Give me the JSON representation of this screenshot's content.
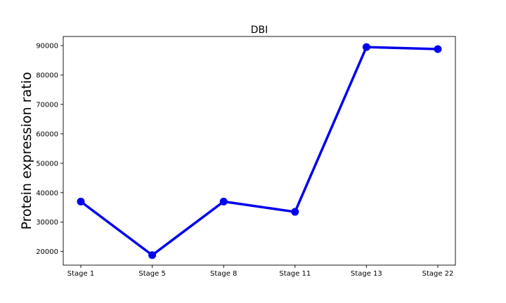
{
  "chart_data": {
    "type": "line",
    "title": "DBI",
    "xlabel": "",
    "ylabel": "Protein expression ratio",
    "categories": [
      "Stage 1",
      "Stage 5",
      "Stage 8",
      "Stage 11",
      "Stage 13",
      "Stage 22"
    ],
    "series": [
      {
        "values": [
          37000,
          18800,
          37000,
          33500,
          89500,
          88800
        ],
        "color": "#0000ee"
      }
    ],
    "ylim": [
      15400,
      93100
    ],
    "yticks": [
      20000,
      30000,
      40000,
      50000,
      60000,
      70000,
      80000,
      90000
    ],
    "ytick_labels": [
      "20000",
      "30000",
      "40000",
      "50000",
      "60000",
      "70000",
      "80000",
      "90000"
    ],
    "grid": false,
    "legend": false
  }
}
